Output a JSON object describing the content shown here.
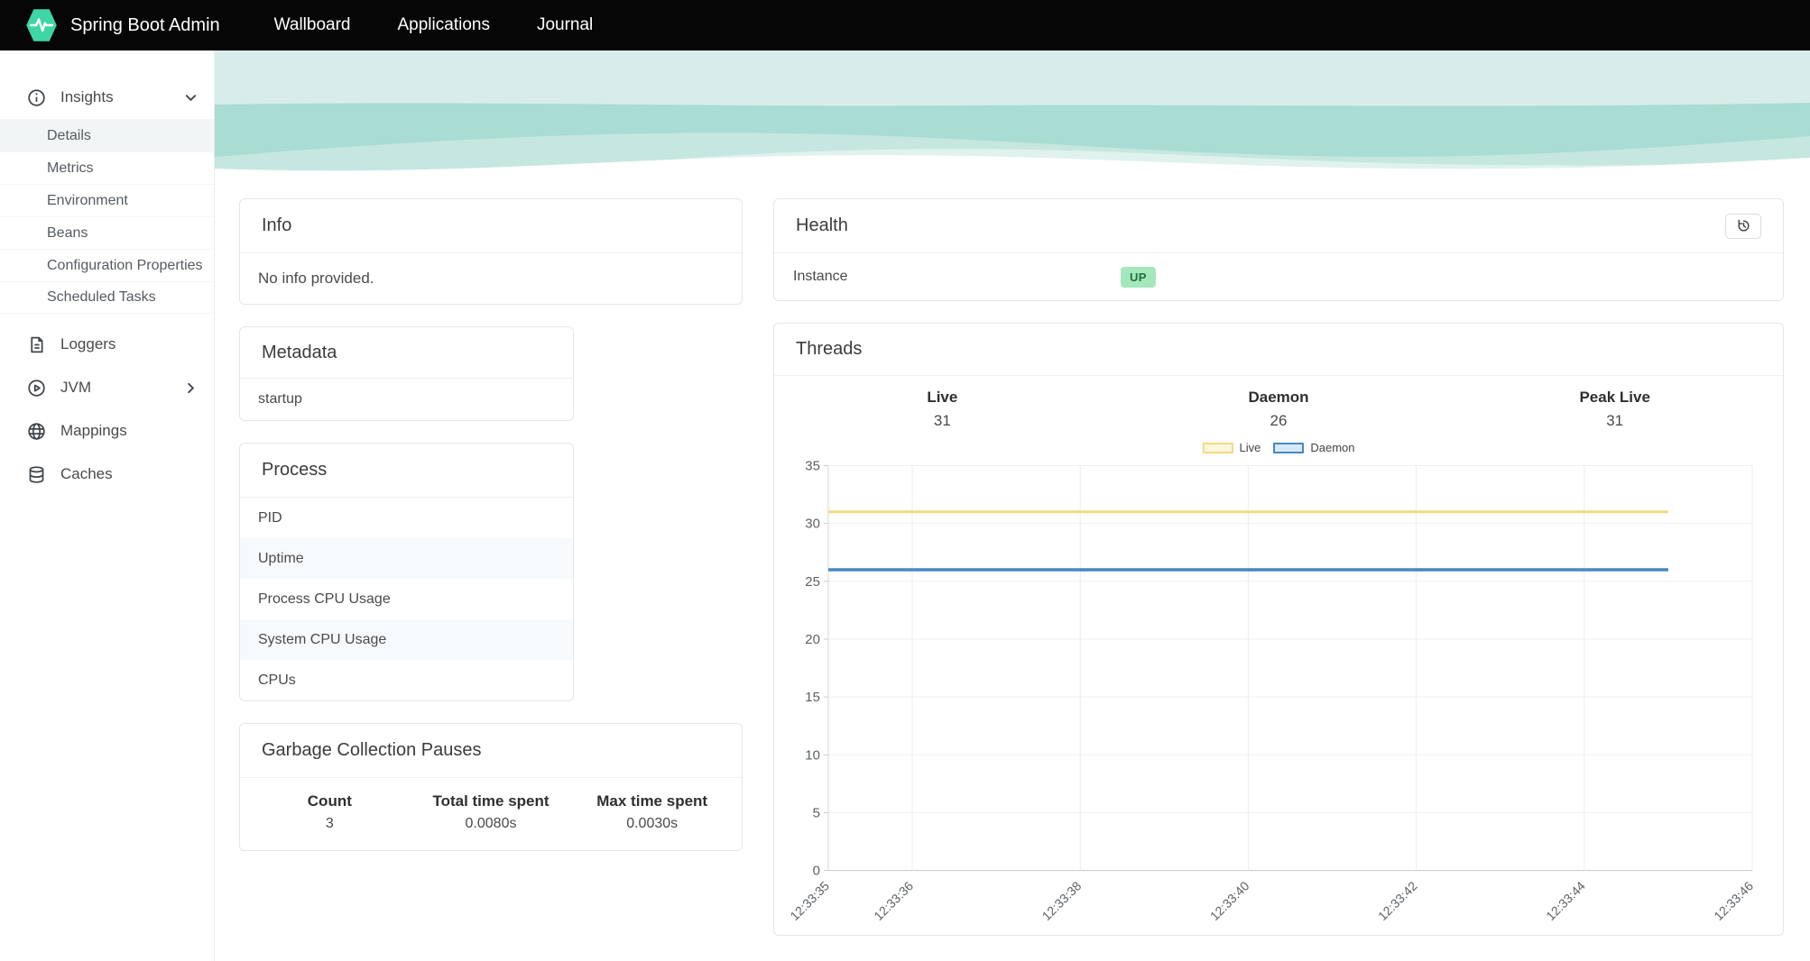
{
  "navbar": {
    "brand": "Spring Boot Admin",
    "links": [
      {
        "label": "Wallboard"
      },
      {
        "label": "Applications"
      },
      {
        "label": "Journal"
      }
    ]
  },
  "sidebar": {
    "insights": {
      "label": "Insights",
      "items": [
        "Details",
        "Metrics",
        "Environment",
        "Beans",
        "Configuration Properties",
        "Scheduled Tasks"
      ],
      "active_item": "Details"
    },
    "items": [
      {
        "label": "Loggers",
        "icon": "document-icon"
      },
      {
        "label": "JVM",
        "icon": "play-circle-icon",
        "expandable": true
      },
      {
        "label": "Mappings",
        "icon": "globe-icon"
      },
      {
        "label": "Caches",
        "icon": "database-icon"
      }
    ]
  },
  "info_card": {
    "title": "Info",
    "body": "No info provided."
  },
  "health_card": {
    "title": "Health",
    "rows": [
      {
        "label": "Instance",
        "status": "UP"
      }
    ]
  },
  "metadata_card": {
    "title": "Metadata",
    "rows": [
      "startup"
    ]
  },
  "process_card": {
    "title": "Process",
    "rows": [
      "PID",
      "Uptime",
      "Process CPU Usage",
      "System CPU Usage",
      "CPUs"
    ]
  },
  "gc_card": {
    "title": "Garbage Collection Pauses",
    "columns": [
      "Count",
      "Total time spent",
      "Max time spent"
    ],
    "values": [
      "3",
      "0.0080s",
      "0.0030s"
    ]
  },
  "threads_card": {
    "title": "Threads",
    "stats": [
      {
        "label": "Live",
        "value": "31"
      },
      {
        "label": "Daemon",
        "value": "26"
      },
      {
        "label": "Peak Live",
        "value": "31"
      }
    ]
  },
  "chart_data": {
    "type": "line",
    "title": "Threads",
    "series": [
      {
        "name": "Live",
        "color": "#f2da84",
        "fill": "#fcf6dd",
        "width": 3,
        "points": [
          [
            "12:33:35",
            31
          ],
          [
            "12:33:45",
            31
          ]
        ]
      },
      {
        "name": "Daemon",
        "color": "#4687c4",
        "fill": "#d8e9f6",
        "width": 3.5,
        "points": [
          [
            "12:33:35",
            26
          ],
          [
            "12:33:45",
            26
          ]
        ]
      }
    ],
    "x_ticks": [
      "12:33:35",
      "12:33:36",
      "12:33:38",
      "12:33:40",
      "12:33:42",
      "12:33:44",
      "12:33:46"
    ],
    "x_domain": [
      "12:33:35",
      "12:33:46"
    ],
    "y_ticks": [
      0,
      5,
      10,
      15,
      20,
      25,
      30,
      35
    ],
    "ylim": [
      0,
      35
    ],
    "xlabel": "",
    "ylabel": "",
    "grid": true,
    "legend_position": "top"
  },
  "colors": {
    "brand": "#3ed6a4",
    "up_badge_bg": "#a3e7bb",
    "up_badge_text": "#22703f",
    "wave_light": "#d8ede9",
    "wave_mid": "#a9dcd3"
  }
}
